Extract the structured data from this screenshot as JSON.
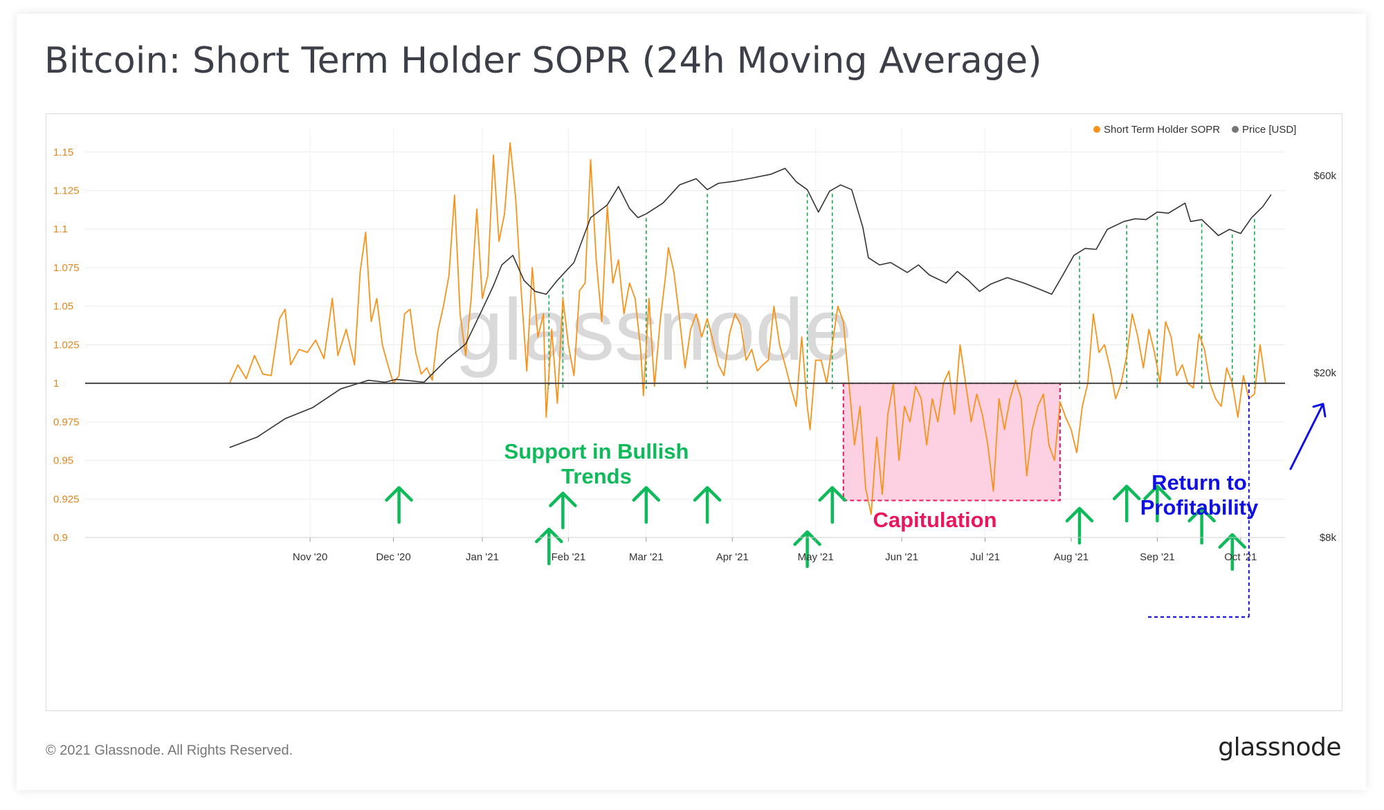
{
  "title": "Bitcoin: Short Term Holder SOPR (24h Moving Average)",
  "footer": {
    "copyright": "© 2021 Glassnode. All Rights Reserved.",
    "logo": "glassnode"
  },
  "watermark": "glassnode",
  "colors": {
    "sopr": "#f7931a",
    "price": "#333333",
    "support": "#0fba5a",
    "capitulation": "#e8175d",
    "capitulation_fill": "#fdd0e2",
    "profitability": "#1010e0"
  },
  "chart_data": {
    "type": "line",
    "title": "Bitcoin: Short Term Holder SOPR (24h Moving Average)",
    "legend": [
      {
        "name": "Short Term Holder SOPR",
        "color": "#f7931a"
      },
      {
        "name": "Price [USD]",
        "color": "#777777"
      }
    ],
    "legend_position": "top-right",
    "x_ticks": [
      "Nov '20",
      "Dec '20",
      "Jan '21",
      "Feb '21",
      "Mar '21",
      "Apr '21",
      "May '21",
      "Jun '21",
      "Jul '21",
      "Aug '21",
      "Sep '21",
      "Oct '21"
    ],
    "x_range_days": [
      0,
      350
    ],
    "x_tick_days": [
      29,
      59,
      91,
      122,
      150,
      181,
      211,
      242,
      272,
      303,
      334,
      364
    ],
    "y_left": {
      "ticks": [
        "1.15",
        "1.125",
        "1.1",
        "1.075",
        "1.05",
        "1.025",
        "1",
        "0.975",
        "0.95",
        "0.925",
        "0.9"
      ],
      "range": [
        0.9,
        1.165
      ]
    },
    "y_right": {
      "ticks": [
        "$60k",
        "$20k",
        "$8k"
      ],
      "scale": "log",
      "range_usd": [
        8000,
        70000
      ]
    },
    "reference_line": 1.0,
    "series": [
      {
        "name": "Short Term Holder SOPR",
        "points": [
          [
            0,
            1.0
          ],
          [
            3,
            1.012
          ],
          [
            6,
            1.003
          ],
          [
            9,
            1.018
          ],
          [
            12,
            1.006
          ],
          [
            15,
            1.005
          ],
          [
            18,
            1.042
          ],
          [
            20,
            1.048
          ],
          [
            22,
            1.012
          ],
          [
            25,
            1.022
          ],
          [
            28,
            1.02
          ],
          [
            31,
            1.028
          ],
          [
            34,
            1.016
          ],
          [
            37,
            1.055
          ],
          [
            39,
            1.018
          ],
          [
            42,
            1.035
          ],
          [
            45,
            1.012
          ],
          [
            47,
            1.072
          ],
          [
            49,
            1.098
          ],
          [
            51,
            1.04
          ],
          [
            53,
            1.055
          ],
          [
            55,
            1.025
          ],
          [
            57,
            1.012
          ],
          [
            59,
            1.0
          ],
          [
            61,
            1.005
          ],
          [
            63,
            1.045
          ],
          [
            65,
            1.048
          ],
          [
            67,
            1.02
          ],
          [
            69,
            1.006
          ],
          [
            71,
            1.01
          ],
          [
            73,
            1.002
          ],
          [
            75,
            1.034
          ],
          [
            77,
            1.05
          ],
          [
            79,
            1.07
          ],
          [
            81,
            1.122
          ],
          [
            83,
            1.045
          ],
          [
            85,
            1.018
          ],
          [
            87,
            1.055
          ],
          [
            89,
            1.113
          ],
          [
            91,
            1.055
          ],
          [
            93,
            1.07
          ],
          [
            95,
            1.148
          ],
          [
            97,
            1.092
          ],
          [
            99,
            1.11
          ],
          [
            101,
            1.156
          ],
          [
            103,
            1.12
          ],
          [
            105,
            1.06
          ],
          [
            107,
            1.008
          ],
          [
            109,
            1.075
          ],
          [
            111,
            1.03
          ],
          [
            113,
            1.045
          ],
          [
            114,
            0.978
          ],
          [
            116,
            1.035
          ],
          [
            118,
            0.987
          ],
          [
            120,
            1.055
          ],
          [
            122,
            1.025
          ],
          [
            124,
            1.005
          ],
          [
            126,
            1.06
          ],
          [
            128,
            1.065
          ],
          [
            130,
            1.145
          ],
          [
            132,
            1.08
          ],
          [
            134,
            1.04
          ],
          [
            136,
            1.115
          ],
          [
            138,
            1.065
          ],
          [
            140,
            1.08
          ],
          [
            142,
            1.045
          ],
          [
            144,
            1.065
          ],
          [
            146,
            1.055
          ],
          [
            148,
            1.022
          ],
          [
            149,
            0.992
          ],
          [
            151,
            1.055
          ],
          [
            153,
            0.998
          ],
          [
            155,
            1.04
          ],
          [
            157,
            1.07
          ],
          [
            158,
            1.088
          ],
          [
            160,
            1.072
          ],
          [
            162,
            1.042
          ],
          [
            164,
            1.01
          ],
          [
            166,
            1.035
          ],
          [
            168,
            1.045
          ],
          [
            170,
            1.03
          ],
          [
            172,
            1.042
          ],
          [
            174,
            1.028
          ],
          [
            176,
            1.012
          ],
          [
            178,
            1.005
          ],
          [
            180,
            1.032
          ],
          [
            182,
            1.045
          ],
          [
            184,
            1.038
          ],
          [
            186,
            1.015
          ],
          [
            188,
            1.022
          ],
          [
            190,
            1.008
          ],
          [
            192,
            1.012
          ],
          [
            194,
            1.015
          ],
          [
            196,
            1.05
          ],
          [
            198,
            1.025
          ],
          [
            200,
            1.012
          ],
          [
            202,
            0.998
          ],
          [
            204,
            0.985
          ],
          [
            206,
            1.03
          ],
          [
            208,
            0.985
          ],
          [
            209,
            0.97
          ],
          [
            211,
            1.015
          ],
          [
            213,
            1.015
          ],
          [
            215,
            1.0
          ],
          [
            217,
            1.025
          ],
          [
            219,
            1.05
          ],
          [
            221,
            1.04
          ],
          [
            223,
            1.0
          ],
          [
            225,
            0.96
          ],
          [
            227,
            0.985
          ],
          [
            229,
            0.932
          ],
          [
            231,
            0.915
          ],
          [
            233,
            0.965
          ],
          [
            235,
            0.928
          ],
          [
            237,
            0.98
          ],
          [
            239,
            1.0
          ],
          [
            241,
            0.95
          ],
          [
            243,
            0.985
          ],
          [
            245,
            0.975
          ],
          [
            247,
            0.998
          ],
          [
            249,
            0.99
          ],
          [
            251,
            0.96
          ],
          [
            253,
            0.99
          ],
          [
            255,
            0.975
          ],
          [
            257,
            1.0
          ],
          [
            259,
            1.008
          ],
          [
            261,
            0.98
          ],
          [
            263,
            1.025
          ],
          [
            265,
            1.0
          ],
          [
            267,
            0.975
          ],
          [
            269,
            0.993
          ],
          [
            271,
            0.98
          ],
          [
            273,
            0.96
          ],
          [
            275,
            0.93
          ],
          [
            277,
            0.99
          ],
          [
            279,
            0.97
          ],
          [
            281,
            0.99
          ],
          [
            283,
            1.002
          ],
          [
            285,
            0.99
          ],
          [
            287,
            0.94
          ],
          [
            289,
            0.97
          ],
          [
            291,
            0.985
          ],
          [
            293,
            0.993
          ],
          [
            295,
            0.96
          ],
          [
            297,
            0.95
          ],
          [
            299,
            0.988
          ],
          [
            301,
            0.978
          ],
          [
            303,
            0.97
          ],
          [
            305,
            0.955
          ],
          [
            307,
            0.985
          ],
          [
            309,
            1.0
          ],
          [
            311,
            1.045
          ],
          [
            313,
            1.02
          ],
          [
            315,
            1.025
          ],
          [
            317,
            1.01
          ],
          [
            319,
            0.99
          ],
          [
            321,
            1.0
          ],
          [
            323,
            1.018
          ],
          [
            325,
            1.045
          ],
          [
            327,
            1.03
          ],
          [
            329,
            1.01
          ],
          [
            331,
            1.035
          ],
          [
            333,
            1.02
          ],
          [
            335,
            1.0
          ],
          [
            337,
            1.04
          ],
          [
            339,
            1.03
          ],
          [
            341,
            1.005
          ],
          [
            343,
            1.012
          ],
          [
            345,
            1.0
          ],
          [
            347,
            0.997
          ],
          [
            349,
            1.032
          ],
          [
            351,
            1.022
          ],
          [
            353,
            1.0
          ],
          [
            355,
            0.99
          ],
          [
            357,
            0.985
          ],
          [
            359,
            1.01
          ],
          [
            361,
            1.0
          ],
          [
            363,
            0.978
          ],
          [
            365,
            1.005
          ],
          [
            367,
            0.99
          ],
          [
            369,
            0.993
          ],
          [
            371,
            1.025
          ],
          [
            373,
            1.0
          ],
          [
            375,
            1.0
          ]
        ]
      },
      {
        "name": "Price [USD]",
        "points": [
          [
            0,
            13200
          ],
          [
            10,
            14000
          ],
          [
            20,
            15500
          ],
          [
            30,
            16500
          ],
          [
            40,
            18300
          ],
          [
            50,
            19200
          ],
          [
            56,
            19000
          ],
          [
            60,
            19300
          ],
          [
            70,
            19000
          ],
          [
            78,
            21500
          ],
          [
            85,
            23500
          ],
          [
            91,
            28500
          ],
          [
            95,
            32500
          ],
          [
            98,
            36500
          ],
          [
            102,
            38500
          ],
          [
            106,
            33500
          ],
          [
            110,
            31500
          ],
          [
            114,
            31000
          ],
          [
            118,
            33500
          ],
          [
            124,
            37000
          ],
          [
            130,
            47500
          ],
          [
            136,
            51000
          ],
          [
            140,
            56500
          ],
          [
            144,
            50000
          ],
          [
            147,
            47500
          ],
          [
            150,
            48500
          ],
          [
            156,
            51500
          ],
          [
            162,
            57000
          ],
          [
            168,
            59000
          ],
          [
            172,
            55500
          ],
          [
            176,
            57500
          ],
          [
            182,
            58200
          ],
          [
            188,
            59200
          ],
          [
            195,
            60500
          ],
          [
            200,
            62500
          ],
          [
            204,
            58000
          ],
          [
            208,
            55500
          ],
          [
            212,
            49000
          ],
          [
            216,
            55000
          ],
          [
            220,
            57000
          ],
          [
            224,
            55500
          ],
          [
            228,
            45000
          ],
          [
            230,
            38000
          ],
          [
            234,
            36500
          ],
          [
            238,
            37000
          ],
          [
            244,
            35000
          ],
          [
            248,
            36500
          ],
          [
            252,
            34500
          ],
          [
            258,
            33000
          ],
          [
            262,
            35200
          ],
          [
            266,
            33500
          ],
          [
            270,
            31500
          ],
          [
            274,
            32800
          ],
          [
            280,
            34000
          ],
          [
            286,
            33000
          ],
          [
            292,
            31800
          ],
          [
            296,
            31000
          ],
          [
            300,
            34500
          ],
          [
            304,
            38500
          ],
          [
            308,
            40000
          ],
          [
            312,
            39800
          ],
          [
            316,
            44500
          ],
          [
            322,
            46500
          ],
          [
            326,
            47200
          ],
          [
            330,
            47000
          ],
          [
            334,
            49000
          ],
          [
            338,
            48700
          ],
          [
            344,
            51500
          ],
          [
            346,
            46500
          ],
          [
            350,
            47000
          ],
          [
            356,
            43000
          ],
          [
            360,
            44500
          ],
          [
            364,
            43500
          ],
          [
            368,
            47500
          ],
          [
            372,
            50500
          ],
          [
            375,
            54000
          ]
        ]
      }
    ],
    "annotations": {
      "support_label": [
        "Support in Bullish",
        "Trends"
      ],
      "capitulation_label": "Capitulation",
      "profitability_label": [
        "Return to",
        "Profitability"
      ],
      "support_arrow_days": [
        61,
        115,
        120,
        150,
        172,
        208,
        217,
        306,
        323,
        334,
        350,
        361
      ],
      "dashed_line_days": [
        115,
        120,
        150,
        172,
        208,
        217,
        306,
        323,
        334,
        350,
        361,
        369
      ],
      "capitulation_box": {
        "day_start": 221,
        "day_end": 299,
        "sopr_top": 1.0,
        "sopr_bottom": 0.924
      }
    }
  }
}
